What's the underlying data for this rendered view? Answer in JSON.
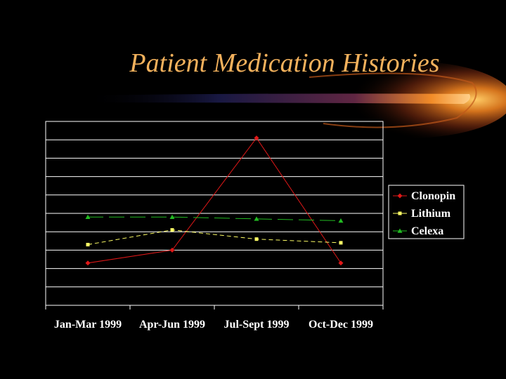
{
  "slide": {
    "title": "Patient Medication Histories"
  },
  "chart_data": {
    "type": "line",
    "categories": [
      "Jan-Mar 1999",
      "Apr-Jun 1999",
      "Jul-Sept 1999",
      "Oct-Dec 1999"
    ],
    "ylim": [
      0,
      10
    ],
    "y_gridlines": 10,
    "grid": "horizontal",
    "legend_position": "right",
    "series": [
      {
        "name": "Clonopin",
        "values": [
          2.3,
          3.0,
          9.1,
          2.3
        ],
        "color": "#e01818",
        "marker": "diamond",
        "dash": "solid"
      },
      {
        "name": "Lithium",
        "values": [
          3.3,
          4.1,
          3.6,
          3.4
        ],
        "color": "#ffff66",
        "marker": "square",
        "dash": "dashed"
      },
      {
        "name": "Celexa",
        "values": [
          4.8,
          4.8,
          4.7,
          4.6
        ],
        "color": "#22bb22",
        "marker": "triangle",
        "dash": "long-dashed"
      }
    ]
  }
}
